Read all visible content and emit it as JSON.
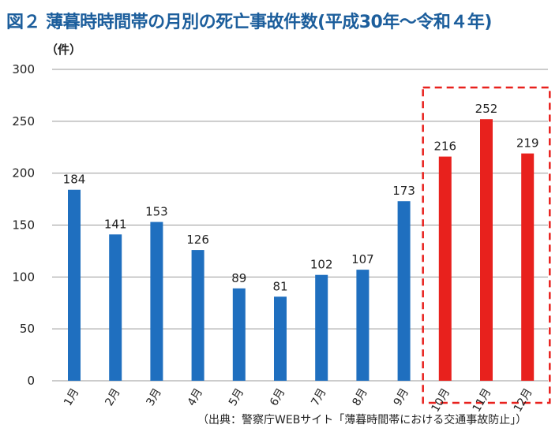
{
  "title": "図２ 薄暮時時間帯の月別の死亡事故件数(平成30年～令和４年)",
  "source": "（出典：警察庁WEBサイト「薄暮時間帯における交通事故防止」）",
  "chart_data": {
    "type": "bar",
    "unit_label": "（件）",
    "categories": [
      "1月",
      "2月",
      "3月",
      "4月",
      "5月",
      "6月",
      "7月",
      "8月",
      "9月",
      "10月",
      "11月",
      "12月"
    ],
    "values": [
      184,
      141,
      153,
      126,
      89,
      81,
      102,
      107,
      173,
      216,
      252,
      219
    ],
    "ylim": [
      0,
      300
    ],
    "yticks": [
      0,
      50,
      100,
      150,
      200,
      250,
      300
    ],
    "grid": true,
    "colors": {
      "default": "#1f6fbf",
      "highlight": "#e8211d",
      "highlight_box": "#e8211d",
      "grid": "#999999",
      "title": "#1c5e9c"
    },
    "highlight_categories": [
      "10月",
      "11月",
      "12月"
    ]
  }
}
